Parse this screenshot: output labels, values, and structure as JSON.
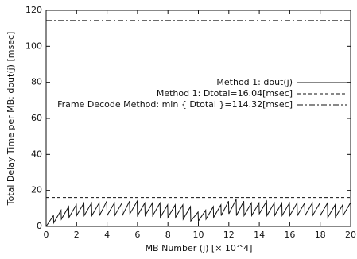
{
  "chart_data": {
    "type": "line",
    "xlabel": "MB Number (j) [× 10^4]",
    "ylabel": "Total Delay Time per MB: dout(j) [msec]",
    "xlim": [
      0,
      20
    ],
    "ylim": [
      0,
      120
    ],
    "xticks": [
      0,
      2,
      4,
      6,
      8,
      10,
      12,
      14,
      16,
      18,
      20
    ],
    "yticks": [
      0,
      20,
      40,
      60,
      80,
      100,
      120
    ],
    "legend": "upper-right",
    "series": [
      {
        "name": "Method 1: dout(j)",
        "color": "#111111",
        "dash": "solid",
        "x": [
          0,
          0.48,
          0.5,
          0.98,
          1,
          1.48,
          1.5,
          1.98,
          2,
          2.48,
          2.5,
          2.98,
          3,
          3.48,
          3.5,
          3.98,
          4,
          4.48,
          4.5,
          4.98,
          5,
          5.48,
          5.5,
          5.98,
          6,
          6.48,
          6.5,
          6.98,
          7,
          7.48,
          7.5,
          7.98,
          8,
          8.48,
          8.5,
          8.98,
          9,
          9.48,
          9.5,
          9.98,
          10,
          10.48,
          10.5,
          10.98,
          11,
          11.48,
          11.5,
          11.98,
          12,
          12.48,
          12.5,
          12.98,
          13,
          13.48,
          13.5,
          13.98,
          14,
          14.48,
          14.5,
          14.98,
          15,
          15.48,
          15.5,
          15.98,
          16,
          16.48,
          16.5,
          16.98,
          17,
          17.48,
          17.5,
          17.98,
          18,
          18.48,
          18.5,
          18.98,
          19,
          19.48,
          19.5,
          19.98
        ],
        "values": [
          0,
          6,
          2,
          9,
          4,
          11,
          5,
          12,
          6,
          13,
          6,
          13,
          6,
          13,
          6,
          14,
          6,
          13,
          6,
          13,
          6,
          14,
          7,
          14,
          6,
          13,
          6,
          13,
          6,
          13,
          5,
          12,
          5,
          12,
          5,
          12,
          4,
          11,
          3,
          8,
          3,
          9,
          4,
          11,
          5,
          12,
          6,
          14,
          7,
          15,
          6,
          14,
          6,
          13,
          6,
          13,
          7,
          14,
          6,
          13,
          6,
          13,
          6,
          13,
          6,
          13,
          6,
          13,
          6,
          13,
          6,
          13,
          6,
          13,
          5,
          12,
          5,
          12,
          6,
          13
        ]
      },
      {
        "name": "Method 1: Dtotal=16.04[msec]",
        "color": "#111111",
        "dash": "dashed",
        "x": [
          0,
          20
        ],
        "values": [
          16.04,
          16.04
        ]
      },
      {
        "name": "Frame Decode Method: min { Dtotal }=114.32[msec]",
        "color": "#111111",
        "dash": "dashdot",
        "x": [
          0,
          20
        ],
        "values": [
          114.32,
          114.32
        ]
      }
    ]
  }
}
